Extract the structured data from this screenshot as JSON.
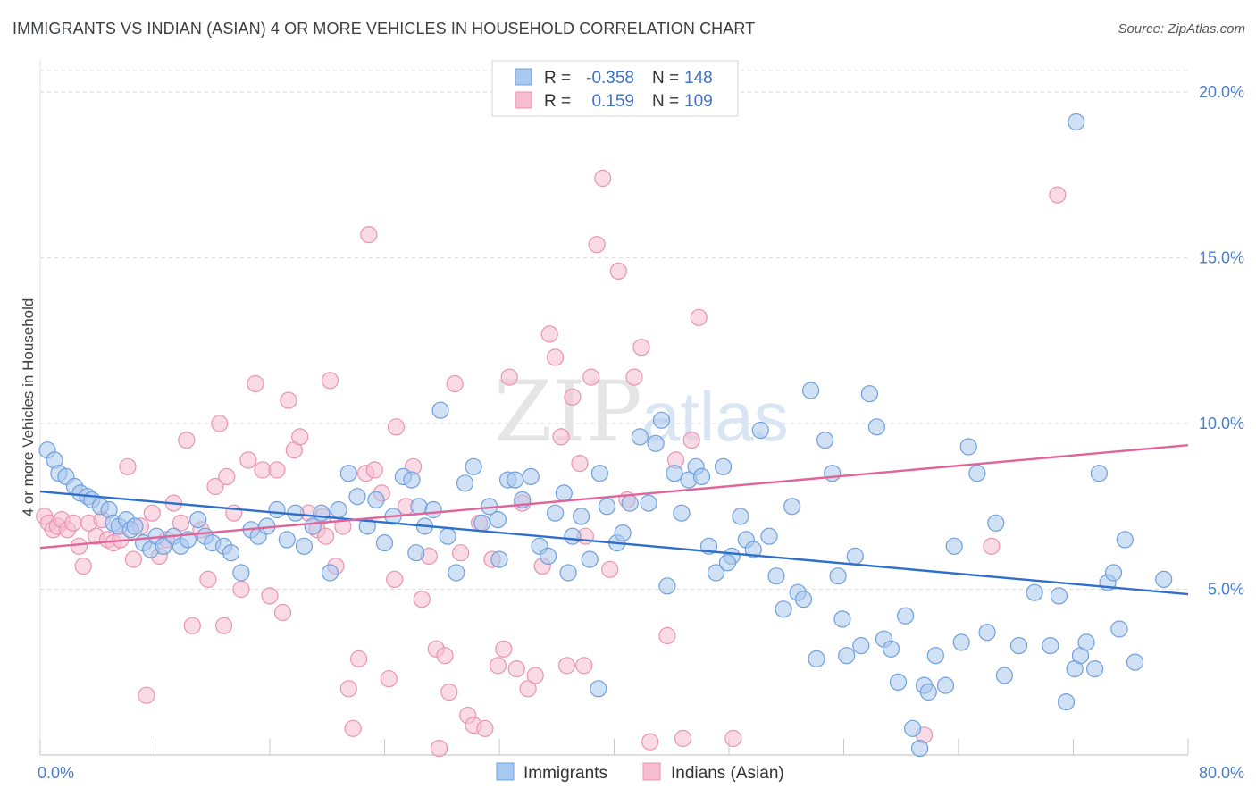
{
  "title": "IMMIGRANTS VS INDIAN (ASIAN) 4 OR MORE VEHICLES IN HOUSEHOLD CORRELATION CHART",
  "source": "Source: ZipAtlas.com",
  "watermark": {
    "zip": "ZIP",
    "atlas": "atlas"
  },
  "colors": {
    "immigrants_fill": "#a9c8ef",
    "immigrants_stroke": "#6f9fdc",
    "immigrants_line": "#2f6fca",
    "indians_fill": "#f6bdd0",
    "indians_stroke": "#ea93b2",
    "indians_line": "#e0649a",
    "tick_label": "#4a7ec9",
    "grid": "#d9d9d9"
  },
  "legend": {
    "rows": [
      {
        "r_label": "R =",
        "r_value": "-0.358",
        "n_label": "N =",
        "n_value": "148"
      },
      {
        "r_label": "R =",
        "r_value": "0.159",
        "n_label": "N =",
        "n_value": "109"
      }
    ]
  },
  "bottom_legend": [
    "Immigrants",
    "Indians (Asian)"
  ],
  "chart_data": {
    "type": "scatter",
    "title": "IMMIGRANTS VS INDIAN (ASIAN) 4 OR MORE VEHICLES IN HOUSEHOLD CORRELATION CHART",
    "xlabel": "",
    "ylabel": "4 or more Vehicles in Household",
    "xlim": [
      0,
      80
    ],
    "ylim": [
      0,
      21
    ],
    "x_tick_labels": [
      "0.0%",
      "80.0%"
    ],
    "y_ticks": [
      5,
      10,
      15,
      20
    ],
    "y_tick_labels": [
      "5.0%",
      "10.0%",
      "15.0%",
      "20.0%"
    ],
    "grid": true,
    "legend_placement": "top-center",
    "series": [
      {
        "name": "Immigrants",
        "R": -0.358,
        "N": 148,
        "trend": {
          "x": [
            0,
            80
          ],
          "y": [
            7.95,
            4.85
          ]
        },
        "points": [
          [
            0.5,
            9.2
          ],
          [
            1.0,
            8.9
          ],
          [
            1.3,
            8.5
          ],
          [
            1.8,
            8.4
          ],
          [
            2.4,
            8.1
          ],
          [
            2.8,
            7.9
          ],
          [
            3.3,
            7.8
          ],
          [
            3.6,
            7.7
          ],
          [
            4.2,
            7.5
          ],
          [
            4.8,
            7.4
          ],
          [
            5.1,
            7.0
          ],
          [
            5.5,
            6.9
          ],
          [
            6.0,
            7.1
          ],
          [
            6.3,
            6.8
          ],
          [
            6.6,
            6.9
          ],
          [
            7.2,
            6.4
          ],
          [
            7.7,
            6.2
          ],
          [
            8.1,
            6.6
          ],
          [
            8.6,
            6.3
          ],
          [
            9.3,
            6.6
          ],
          [
            9.8,
            6.3
          ],
          [
            10.3,
            6.5
          ],
          [
            11.0,
            7.1
          ],
          [
            11.5,
            6.6
          ],
          [
            12.0,
            6.4
          ],
          [
            12.8,
            6.3
          ],
          [
            13.3,
            6.1
          ],
          [
            14.0,
            5.5
          ],
          [
            14.7,
            6.8
          ],
          [
            15.2,
            6.6
          ],
          [
            15.8,
            6.9
          ],
          [
            16.5,
            7.4
          ],
          [
            17.2,
            6.5
          ],
          [
            17.8,
            7.3
          ],
          [
            18.4,
            6.3
          ],
          [
            19.0,
            6.9
          ],
          [
            19.6,
            7.3
          ],
          [
            20.2,
            5.5
          ],
          [
            20.8,
            7.4
          ],
          [
            21.5,
            8.5
          ],
          [
            22.1,
            7.8
          ],
          [
            22.8,
            6.9
          ],
          [
            23.4,
            7.7
          ],
          [
            24.0,
            6.4
          ],
          [
            24.6,
            7.2
          ],
          [
            25.3,
            8.4
          ],
          [
            25.9,
            8.3
          ],
          [
            26.4,
            7.5
          ],
          [
            26.8,
            6.9
          ],
          [
            27.4,
            7.4
          ],
          [
            27.9,
            10.4
          ],
          [
            28.4,
            6.6
          ],
          [
            29.0,
            5.5
          ],
          [
            29.6,
            8.2
          ],
          [
            30.2,
            8.7
          ],
          [
            30.8,
            7.0
          ],
          [
            31.3,
            7.5
          ],
          [
            31.9,
            7.1
          ],
          [
            32.6,
            8.3
          ],
          [
            33.1,
            8.3
          ],
          [
            33.6,
            7.7
          ],
          [
            34.2,
            8.4
          ],
          [
            34.8,
            6.3
          ],
          [
            35.4,
            6.0
          ],
          [
            35.9,
            7.3
          ],
          [
            36.5,
            7.9
          ],
          [
            37.1,
            6.6
          ],
          [
            37.7,
            7.2
          ],
          [
            38.3,
            5.9
          ],
          [
            39.0,
            8.5
          ],
          [
            39.5,
            7.5
          ],
          [
            40.2,
            6.4
          ],
          [
            40.6,
            6.7
          ],
          [
            41.1,
            7.6
          ],
          [
            41.8,
            9.6
          ],
          [
            42.4,
            7.6
          ],
          [
            42.9,
            9.4
          ],
          [
            43.3,
            10.1
          ],
          [
            43.7,
            5.1
          ],
          [
            44.2,
            8.5
          ],
          [
            44.7,
            7.3
          ],
          [
            45.2,
            8.3
          ],
          [
            45.7,
            8.7
          ],
          [
            46.1,
            8.4
          ],
          [
            46.6,
            6.3
          ],
          [
            47.1,
            5.5
          ],
          [
            47.6,
            8.7
          ],
          [
            48.2,
            6.0
          ],
          [
            48.8,
            7.2
          ],
          [
            49.2,
            6.5
          ],
          [
            49.7,
            6.2
          ],
          [
            50.2,
            9.8
          ],
          [
            50.8,
            6.6
          ],
          [
            51.3,
            5.4
          ],
          [
            51.8,
            4.4
          ],
          [
            52.4,
            7.5
          ],
          [
            52.8,
            4.9
          ],
          [
            53.2,
            4.7
          ],
          [
            53.7,
            11.0
          ],
          [
            54.1,
            2.9
          ],
          [
            54.7,
            9.5
          ],
          [
            55.2,
            8.5
          ],
          [
            55.6,
            5.4
          ],
          [
            56.2,
            3.0
          ],
          [
            56.8,
            6.0
          ],
          [
            57.2,
            3.3
          ],
          [
            57.8,
            10.9
          ],
          [
            58.3,
            9.9
          ],
          [
            58.8,
            3.5
          ],
          [
            59.3,
            3.2
          ],
          [
            59.8,
            2.2
          ],
          [
            60.3,
            4.2
          ],
          [
            60.8,
            0.8
          ],
          [
            61.3,
            0.2
          ],
          [
            61.6,
            2.1
          ],
          [
            61.9,
            1.9
          ],
          [
            62.4,
            3.0
          ],
          [
            63.1,
            2.1
          ],
          [
            63.7,
            6.3
          ],
          [
            64.2,
            3.4
          ],
          [
            64.7,
            9.3
          ],
          [
            65.3,
            8.5
          ],
          [
            66.0,
            3.7
          ],
          [
            66.6,
            7.0
          ],
          [
            67.2,
            2.4
          ],
          [
            68.2,
            3.3
          ],
          [
            69.3,
            4.9
          ],
          [
            70.4,
            3.3
          ],
          [
            71.0,
            4.8
          ],
          [
            71.5,
            1.6
          ],
          [
            72.1,
            2.6
          ],
          [
            72.5,
            3.0
          ],
          [
            72.9,
            3.4
          ],
          [
            73.5,
            2.6
          ],
          [
            73.8,
            8.5
          ],
          [
            74.4,
            5.2
          ],
          [
            74.8,
            5.5
          ],
          [
            75.2,
            3.8
          ],
          [
            75.6,
            6.5
          ],
          [
            76.3,
            2.8
          ],
          [
            72.2,
            19.1
          ],
          [
            78.3,
            5.3
          ],
          [
            26.2,
            6.1
          ],
          [
            32.0,
            5.9
          ],
          [
            36.8,
            5.5
          ],
          [
            38.9,
            2.0
          ],
          [
            47.9,
            5.8
          ],
          [
            55.9,
            4.1
          ]
        ]
      },
      {
        "name": "Indians (Asian)",
        "R": 0.159,
        "N": 109,
        "trend": {
          "x": [
            0,
            80
          ],
          "y": [
            6.25,
            9.35
          ]
        },
        "points": [
          [
            0.3,
            7.2
          ],
          [
            0.6,
            7.0
          ],
          [
            0.9,
            6.8
          ],
          [
            1.2,
            6.9
          ],
          [
            1.5,
            7.1
          ],
          [
            1.9,
            6.8
          ],
          [
            2.3,
            7.0
          ],
          [
            2.7,
            6.3
          ],
          [
            3.0,
            5.7
          ],
          [
            3.4,
            7.0
          ],
          [
            3.9,
            6.6
          ],
          [
            4.3,
            7.1
          ],
          [
            4.7,
            6.5
          ],
          [
            5.1,
            6.4
          ],
          [
            5.6,
            6.5
          ],
          [
            6.1,
            8.7
          ],
          [
            6.5,
            5.9
          ],
          [
            7.0,
            6.9
          ],
          [
            7.4,
            1.8
          ],
          [
            7.8,
            7.3
          ],
          [
            8.3,
            6.0
          ],
          [
            8.8,
            6.5
          ],
          [
            9.3,
            7.6
          ],
          [
            9.8,
            7.0
          ],
          [
            10.2,
            9.5
          ],
          [
            10.6,
            3.9
          ],
          [
            11.2,
            6.8
          ],
          [
            11.7,
            5.3
          ],
          [
            12.2,
            8.1
          ],
          [
            12.5,
            10.0
          ],
          [
            13.0,
            8.4
          ],
          [
            13.5,
            7.3
          ],
          [
            14.0,
            5.0
          ],
          [
            14.5,
            8.9
          ],
          [
            15.0,
            11.2
          ],
          [
            15.5,
            8.6
          ],
          [
            16.0,
            4.8
          ],
          [
            16.5,
            8.6
          ],
          [
            16.9,
            4.3
          ],
          [
            17.3,
            10.7
          ],
          [
            17.7,
            9.2
          ],
          [
            18.1,
            9.6
          ],
          [
            18.7,
            7.3
          ],
          [
            19.3,
            6.8
          ],
          [
            19.7,
            7.2
          ],
          [
            20.2,
            11.3
          ],
          [
            20.6,
            5.7
          ],
          [
            21.1,
            6.9
          ],
          [
            21.5,
            2.0
          ],
          [
            21.8,
            0.8
          ],
          [
            22.2,
            2.9
          ],
          [
            22.7,
            8.5
          ],
          [
            22.9,
            15.7
          ],
          [
            23.3,
            8.6
          ],
          [
            23.8,
            7.9
          ],
          [
            24.3,
            2.3
          ],
          [
            24.8,
            9.9
          ],
          [
            25.5,
            7.5
          ],
          [
            26.0,
            8.7
          ],
          [
            26.6,
            4.7
          ],
          [
            27.1,
            6.0
          ],
          [
            27.6,
            3.2
          ],
          [
            27.8,
            0.2
          ],
          [
            28.2,
            3.0
          ],
          [
            28.5,
            1.9
          ],
          [
            28.9,
            11.2
          ],
          [
            29.3,
            6.1
          ],
          [
            29.8,
            1.2
          ],
          [
            30.2,
            0.9
          ],
          [
            30.6,
            7.0
          ],
          [
            31.0,
            0.8
          ],
          [
            31.5,
            5.9
          ],
          [
            31.9,
            2.7
          ],
          [
            32.3,
            3.2
          ],
          [
            32.7,
            11.4
          ],
          [
            33.2,
            2.6
          ],
          [
            33.6,
            7.6
          ],
          [
            34.0,
            2.0
          ],
          [
            34.5,
            2.4
          ],
          [
            35.0,
            5.7
          ],
          [
            35.5,
            12.7
          ],
          [
            35.9,
            12.0
          ],
          [
            36.3,
            9.6
          ],
          [
            36.7,
            2.7
          ],
          [
            37.1,
            10.8
          ],
          [
            37.6,
            8.8
          ],
          [
            38.0,
            6.6
          ],
          [
            38.4,
            11.4
          ],
          [
            38.8,
            15.4
          ],
          [
            39.2,
            17.4
          ],
          [
            39.7,
            5.6
          ],
          [
            40.3,
            14.6
          ],
          [
            40.9,
            7.7
          ],
          [
            41.4,
            11.4
          ],
          [
            41.9,
            12.3
          ],
          [
            42.5,
            0.4
          ],
          [
            43.7,
            3.6
          ],
          [
            44.3,
            8.9
          ],
          [
            44.8,
            0.5
          ],
          [
            45.4,
            9.5
          ],
          [
            45.9,
            13.2
          ],
          [
            48.3,
            0.5
          ],
          [
            61.6,
            0.6
          ],
          [
            66.3,
            6.3
          ],
          [
            70.9,
            16.9
          ],
          [
            24.7,
            5.3
          ],
          [
            37.9,
            2.7
          ],
          [
            19.9,
            6.6
          ],
          [
            12.8,
            3.9
          ]
        ]
      }
    ]
  }
}
